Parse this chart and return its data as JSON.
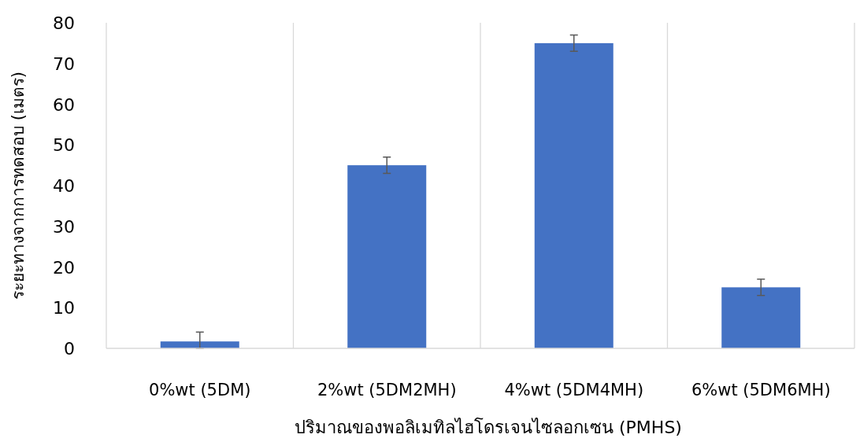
{
  "chart_data": {
    "type": "bar",
    "xlabel": "ปริมาณของพอลิเมทิลไฮโดรเจนไซลอกเซน (PMHS)",
    "ylabel": "ระยะทางจากการทดสอบ (เมตร)",
    "categories": [
      "0%wt (5DM)",
      "2%wt (5DM2MH)",
      "4%wt (5DM4MH)",
      "6%wt (5DM6MH)"
    ],
    "values": [
      1.7,
      45,
      75,
      15
    ],
    "errors": [
      [
        0,
        4
      ],
      2,
      2,
      2
    ],
    "color": "#4472c4",
    "ylim": [
      0,
      80
    ],
    "yticks": [
      0,
      10,
      20,
      30,
      40,
      50,
      60,
      70,
      80
    ],
    "grid": "x"
  }
}
